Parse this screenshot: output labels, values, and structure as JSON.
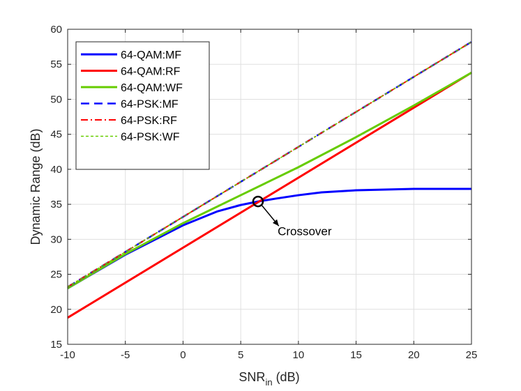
{
  "chart_data": {
    "type": "line",
    "xlabel_main": "SNR",
    "xlabel_sub": "in",
    "xlabel_unit": " (dB)",
    "ylabel": "Dynamic Range (dB)",
    "xlim": [
      -10,
      25
    ],
    "ylim": [
      15,
      60
    ],
    "xticks": [
      -10,
      -5,
      0,
      5,
      10,
      15,
      20,
      25
    ],
    "yticks": [
      15,
      20,
      25,
      30,
      35,
      40,
      45,
      50,
      55,
      60
    ],
    "grid": true,
    "legend_position": "top-left",
    "series": [
      {
        "name": "64-QAM:MF",
        "color": "#0000ff",
        "style": "solid",
        "x": [
          -10,
          -5,
          0,
          3,
          5,
          6.5,
          8,
          10,
          12,
          15,
          20,
          25
        ],
        "y": [
          23.0,
          27.8,
          32.0,
          34.0,
          34.9,
          35.4,
          35.8,
          36.3,
          36.7,
          37.0,
          37.2,
          37.2
        ]
      },
      {
        "name": "64-QAM:RF",
        "color": "#ff0000",
        "style": "solid",
        "x": [
          -10,
          25
        ],
        "y": [
          18.8,
          53.8
        ]
      },
      {
        "name": "64-QAM:WF",
        "color": "#66cc00",
        "style": "solid",
        "x": [
          -10,
          -5,
          0,
          5,
          10,
          15,
          20,
          25
        ],
        "y": [
          23.0,
          27.9,
          32.3,
          36.3,
          40.3,
          44.6,
          49.1,
          53.8
        ]
      },
      {
        "name": "64-PSK:MF",
        "color": "#0000ff",
        "style": "dashed",
        "x": [
          -10,
          25
        ],
        "y": [
          23.2,
          58.2
        ]
      },
      {
        "name": "64-PSK:RF",
        "color": "#ff0000",
        "style": "dashdot",
        "x": [
          -10,
          25
        ],
        "y": [
          23.2,
          58.2
        ]
      },
      {
        "name": "64-PSK:WF",
        "color": "#66cc00",
        "style": "dotted",
        "x": [
          -10,
          25
        ],
        "y": [
          23.2,
          58.2
        ]
      }
    ],
    "annotation": {
      "text": "Crossover",
      "x": 6.5,
      "y": 35.4,
      "text_x": 8.2,
      "text_y": 30.6,
      "arrow_x": 8.3,
      "arrow_y": 31.9
    }
  }
}
